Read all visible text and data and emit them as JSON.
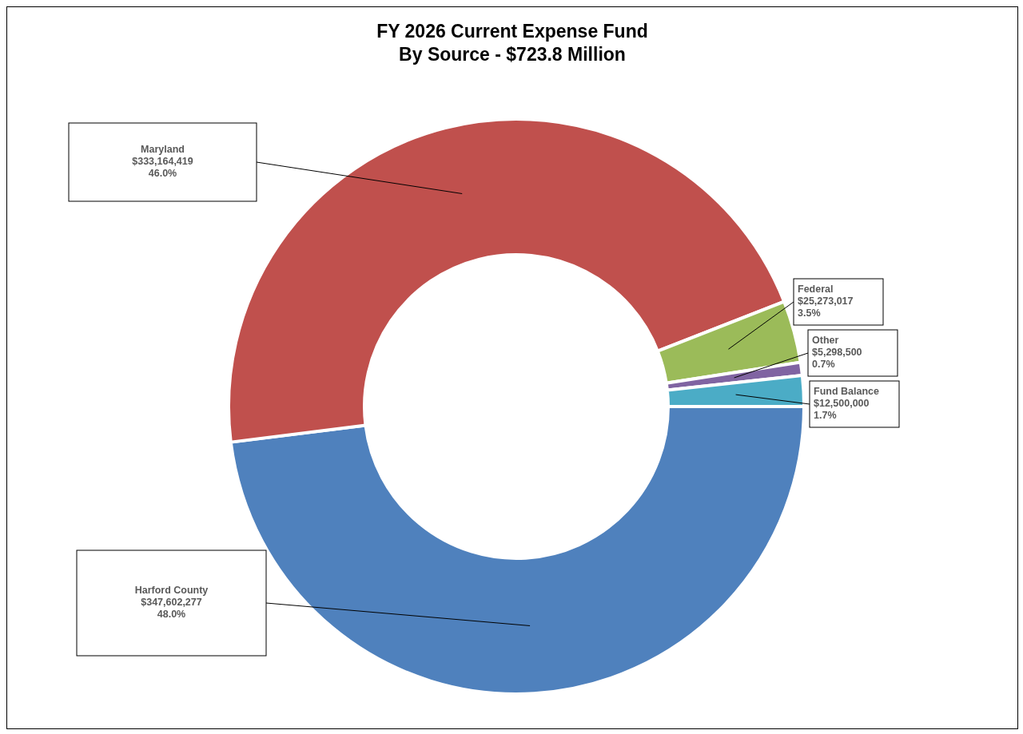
{
  "chart_data": {
    "type": "donut",
    "title": "FY 2026 Current Expense Fund",
    "subtitle": "By Source - $723.8 Million",
    "categories": [
      "Harford County",
      "Maryland",
      "Federal",
      "Other",
      "Fund Balance"
    ],
    "values": [
      347602277,
      333164419,
      25273017,
      5298500,
      12500000
    ],
    "colors": [
      "#4f81bd",
      "#c0504d",
      "#9bbb59",
      "#8064a2",
      "#4bacc6"
    ],
    "value_labels": [
      "$347,602,277\n48.0%",
      "$333,164,419\n46.0%",
      "$25,273,017\n3.5%",
      "$5,298,500\n0.7%",
      "$12,500,000\n1.7%"
    ]
  }
}
